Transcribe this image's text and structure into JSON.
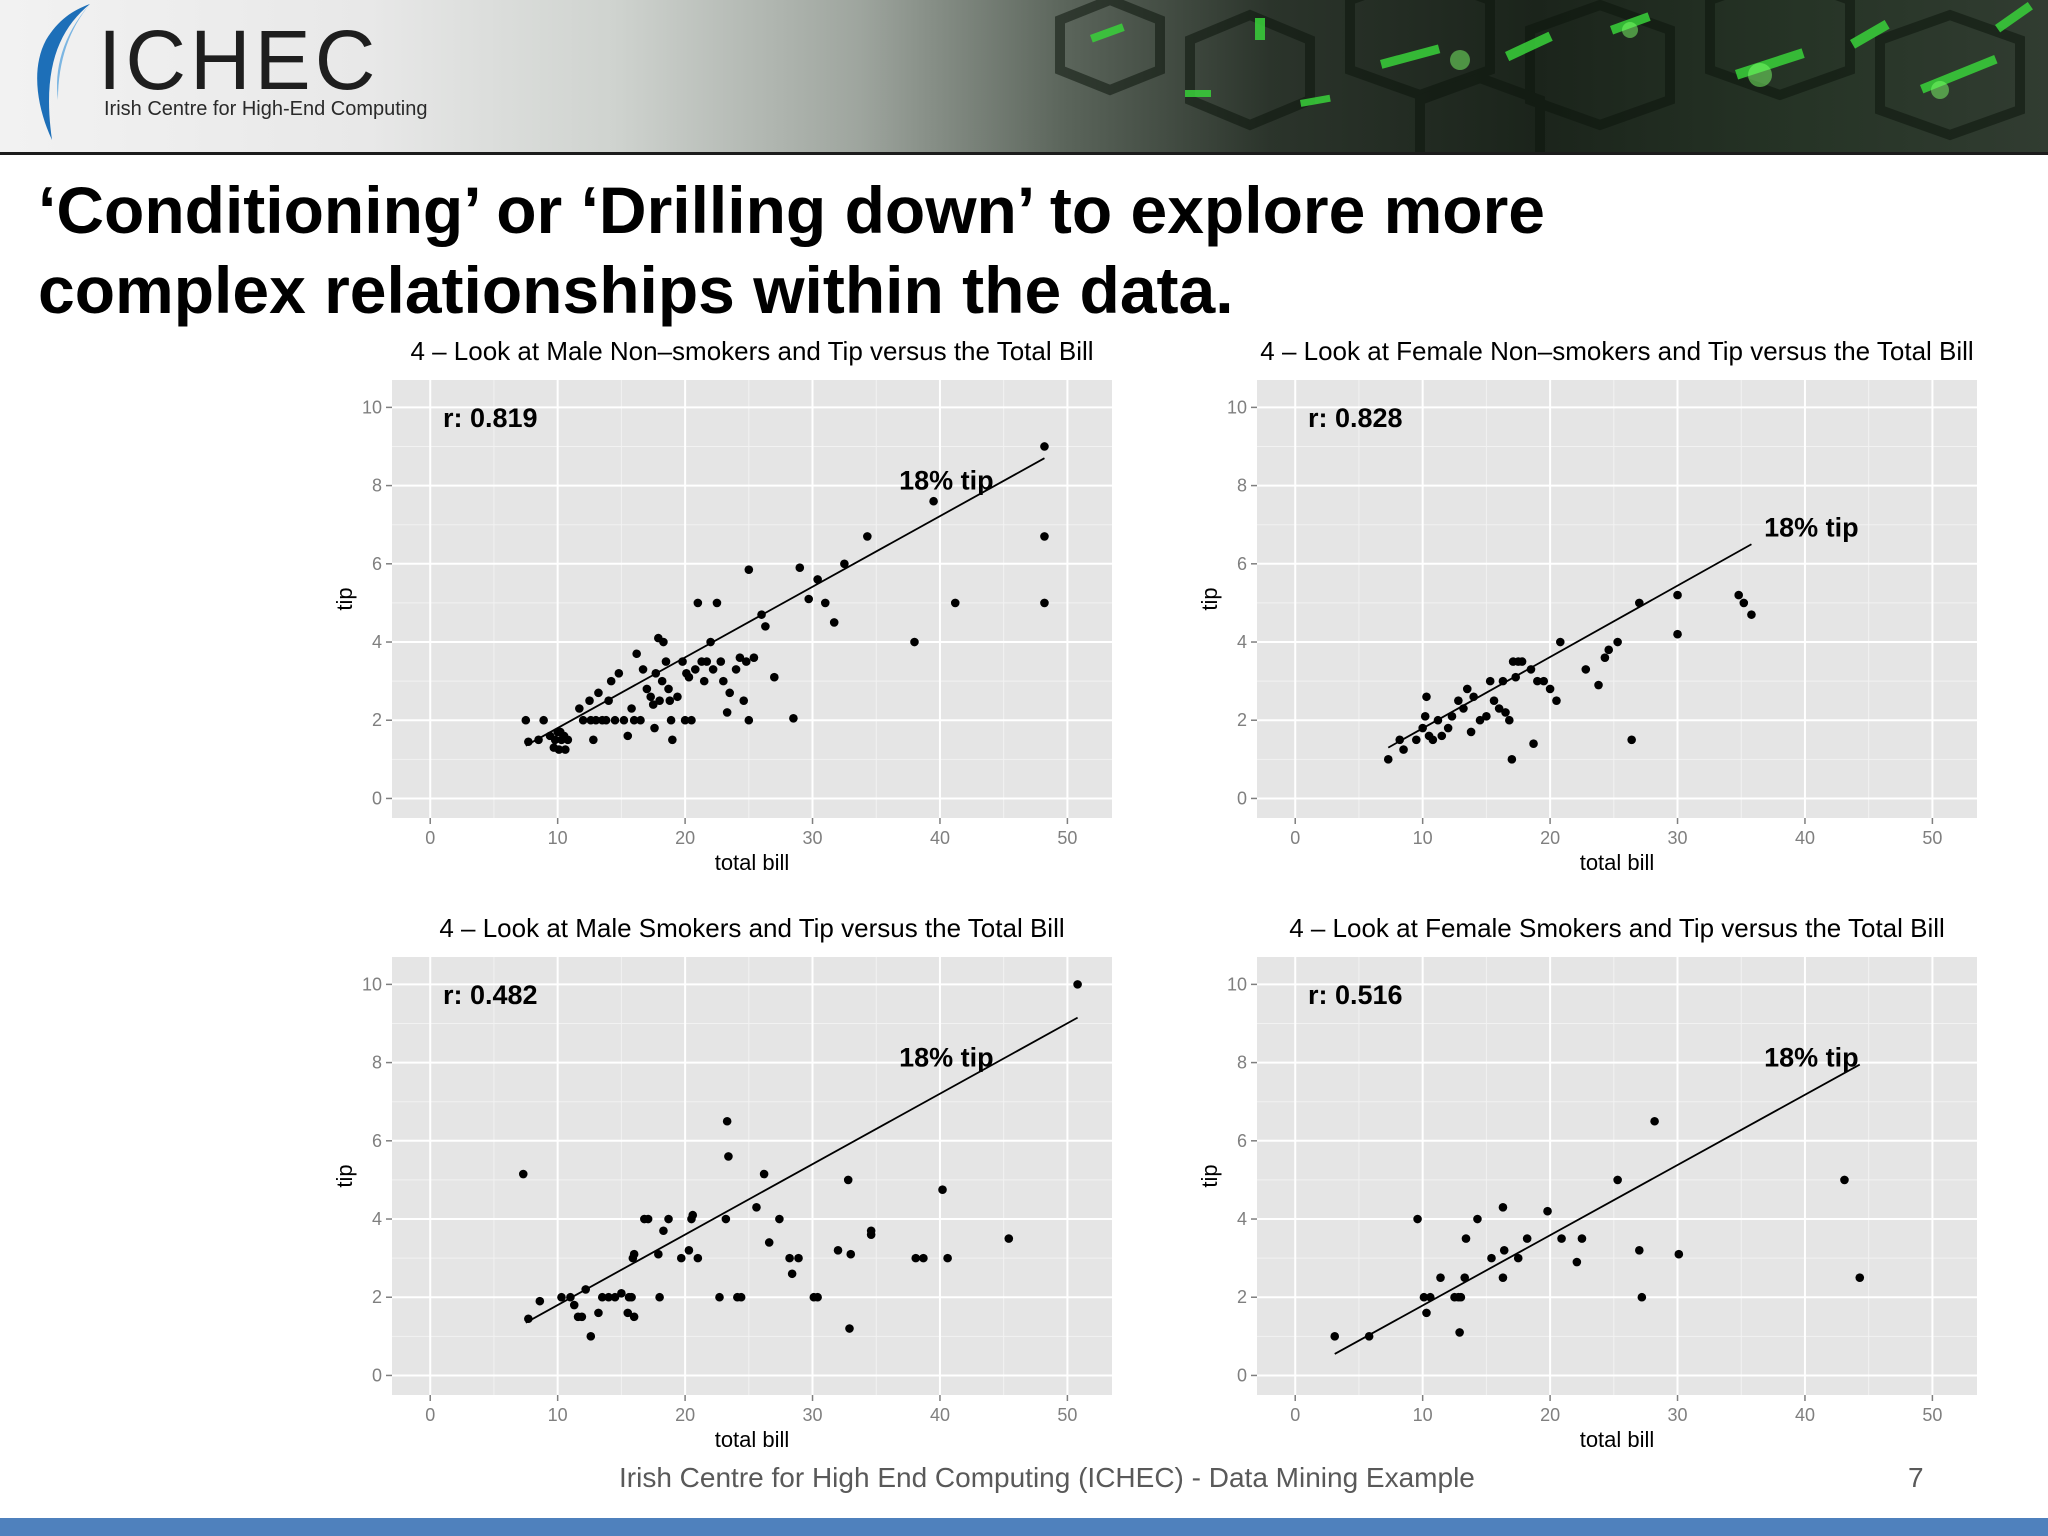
{
  "header": {
    "logo_text": "ICHEC",
    "logo_subtitle": "Irish Centre for High-End Computing"
  },
  "title_line1": "‘Conditioning’ or ‘Drilling down’ to explore more",
  "title_line2": "complex relationships within the data.",
  "footer": {
    "text": "Irish Centre for High End Computing (ICHEC) - Data Mining Example",
    "page_number": "7"
  },
  "colors": {
    "panel_bg": "#e5e5e5",
    "grid": "#ffffff",
    "points": "#000000",
    "accent_bar": "#4f81bd"
  },
  "chart_data": [
    {
      "type": "scatter",
      "title": "4 – Look at Male Non–smokers and Tip versus the Total Bill",
      "xlabel": "total bill",
      "ylabel": "tip",
      "xlim": [
        -3,
        53.5
      ],
      "ylim": [
        -0.5,
        10.7
      ],
      "xticks": [
        0,
        10,
        20,
        30,
        40,
        50
      ],
      "yticks": [
        0,
        2,
        4,
        6,
        8,
        10
      ],
      "grid": true,
      "r_label": "r: 0.819",
      "line_label": "18% tip",
      "line_label_at": [
        40.5,
        7.9
      ],
      "r_label_at": [
        1,
        9.5
      ],
      "line": {
        "x": [
          7.5,
          48.2
        ],
        "y": [
          1.35,
          8.7
        ]
      },
      "points": [
        [
          7.5,
          2
        ],
        [
          7.7,
          1.45
        ],
        [
          8.5,
          1.5
        ],
        [
          8.9,
          2
        ],
        [
          9.4,
          1.6
        ],
        [
          9.7,
          1.3
        ],
        [
          9.8,
          1.5
        ],
        [
          10,
          1.7
        ],
        [
          10.1,
          1.25
        ],
        [
          10.2,
          1.7
        ],
        [
          10.3,
          1.5
        ],
        [
          10.5,
          1.6
        ],
        [
          10.6,
          1.25
        ],
        [
          10.8,
          1.5
        ],
        [
          11.7,
          2.3
        ],
        [
          12,
          2
        ],
        [
          12.5,
          2.5
        ],
        [
          12.6,
          2
        ],
        [
          12.8,
          1.5
        ],
        [
          13,
          2
        ],
        [
          13.2,
          2.7
        ],
        [
          13.5,
          2
        ],
        [
          13.8,
          2
        ],
        [
          14,
          2.5
        ],
        [
          14.2,
          3
        ],
        [
          14.5,
          2
        ],
        [
          14.8,
          3.2
        ],
        [
          15.2,
          2
        ],
        [
          15.5,
          1.6
        ],
        [
          15.8,
          2.3
        ],
        [
          16,
          2
        ],
        [
          16.2,
          3.7
        ],
        [
          16.5,
          2
        ],
        [
          16.7,
          3.3
        ],
        [
          17,
          2.8
        ],
        [
          17.3,
          2.6
        ],
        [
          17.5,
          2.4
        ],
        [
          17.6,
          1.8
        ],
        [
          17.7,
          3.2
        ],
        [
          17.9,
          4.1
        ],
        [
          18,
          2.5
        ],
        [
          18.2,
          3
        ],
        [
          18.3,
          4
        ],
        [
          18.5,
          3.5
        ],
        [
          18.7,
          2.8
        ],
        [
          18.8,
          2.5
        ],
        [
          18.9,
          2
        ],
        [
          19,
          1.5
        ],
        [
          19.4,
          2.6
        ],
        [
          19.8,
          3.5
        ],
        [
          20,
          2
        ],
        [
          20.1,
          3.2
        ],
        [
          20.3,
          3.1
        ],
        [
          20.5,
          2
        ],
        [
          20.8,
          3.3
        ],
        [
          21,
          5
        ],
        [
          21.3,
          3.5
        ],
        [
          21.5,
          3
        ],
        [
          21.7,
          3.5
        ],
        [
          22,
          4
        ],
        [
          22.2,
          3.3
        ],
        [
          22.5,
          5
        ],
        [
          22.8,
          3.5
        ],
        [
          23,
          3
        ],
        [
          23.3,
          2.2
        ],
        [
          23.5,
          2.7
        ],
        [
          24,
          3.3
        ],
        [
          24.3,
          3.6
        ],
        [
          24.6,
          2.5
        ],
        [
          24.8,
          3.5
        ],
        [
          25,
          5.85
        ],
        [
          25,
          2
        ],
        [
          25.4,
          3.6
        ],
        [
          26,
          4.7
        ],
        [
          26.3,
          4.4
        ],
        [
          27,
          3.1
        ],
        [
          28.5,
          2.05
        ],
        [
          29,
          5.9
        ],
        [
          29.7,
          5.1
        ],
        [
          30.4,
          5.6
        ],
        [
          31,
          5
        ],
        [
          31.7,
          4.5
        ],
        [
          32.5,
          6
        ],
        [
          34.3,
          6.7
        ],
        [
          38,
          4
        ],
        [
          39.5,
          7.6
        ],
        [
          41.2,
          5
        ],
        [
          48.2,
          9
        ],
        [
          48.2,
          6.7
        ],
        [
          48.2,
          5
        ]
      ]
    },
    {
      "type": "scatter",
      "title": "4 – Look at Female Non–smokers and Tip versus the Total Bill",
      "xlabel": "total bill",
      "ylabel": "tip",
      "xlim": [
        -3,
        53.5
      ],
      "ylim": [
        -0.5,
        10.7
      ],
      "xticks": [
        0,
        10,
        20,
        30,
        40,
        50
      ],
      "yticks": [
        0,
        2,
        4,
        6,
        8,
        10
      ],
      "grid": true,
      "r_label": "r: 0.828",
      "line_label": "18% tip",
      "line_label_at": [
        40.5,
        6.7
      ],
      "r_label_at": [
        1,
        9.5
      ],
      "line": {
        "x": [
          7.3,
          35.8
        ],
        "y": [
          1.3,
          6.5
        ]
      },
      "points": [
        [
          7.3,
          1
        ],
        [
          8.2,
          1.5
        ],
        [
          8.5,
          1.25
        ],
        [
          9.5,
          1.5
        ],
        [
          10,
          1.8
        ],
        [
          10.2,
          2.1
        ],
        [
          10.3,
          2.6
        ],
        [
          10.5,
          1.6
        ],
        [
          10.8,
          1.5
        ],
        [
          11.2,
          2
        ],
        [
          11.5,
          1.6
        ],
        [
          12,
          1.8
        ],
        [
          12.3,
          2.1
        ],
        [
          12.8,
          2.5
        ],
        [
          13.2,
          2.3
        ],
        [
          13.5,
          2.8
        ],
        [
          13.8,
          1.7
        ],
        [
          14,
          2.6
        ],
        [
          14.5,
          2
        ],
        [
          15,
          2.1
        ],
        [
          15.3,
          3
        ],
        [
          15.6,
          2.5
        ],
        [
          16,
          2.3
        ],
        [
          16.3,
          3
        ],
        [
          16.5,
          2.2
        ],
        [
          16.8,
          2
        ],
        [
          17,
          1
        ],
        [
          17.1,
          3.5
        ],
        [
          17.3,
          3.1
        ],
        [
          17.5,
          3.5
        ],
        [
          17.8,
          3.5
        ],
        [
          18.5,
          3.3
        ],
        [
          18.7,
          1.4
        ],
        [
          19,
          3
        ],
        [
          19.5,
          3
        ],
        [
          20,
          2.8
        ],
        [
          20.5,
          2.5
        ],
        [
          20.8,
          4
        ],
        [
          22.8,
          3.3
        ],
        [
          23.8,
          2.9
        ],
        [
          24.3,
          3.6
        ],
        [
          24.6,
          3.8
        ],
        [
          25.3,
          4
        ],
        [
          26.4,
          1.5
        ],
        [
          27,
          5
        ],
        [
          30,
          5.2
        ],
        [
          30,
          4.2
        ],
        [
          34.8,
          5.2
        ],
        [
          35.2,
          5
        ],
        [
          35.8,
          4.7
        ]
      ]
    },
    {
      "type": "scatter",
      "title": "4 – Look at Male Smokers and Tip versus the Total Bill",
      "xlabel": "total bill",
      "ylabel": "tip",
      "xlim": [
        -3,
        53.5
      ],
      "ylim": [
        -0.5,
        10.7
      ],
      "xticks": [
        0,
        10,
        20,
        30,
        40,
        50
      ],
      "yticks": [
        0,
        2,
        4,
        6,
        8,
        10
      ],
      "grid": true,
      "r_label": "r: 0.482",
      "line_label": "18% tip",
      "line_label_at": [
        40.5,
        7.9
      ],
      "r_label_at": [
        1,
        9.5
      ],
      "line": {
        "x": [
          7.5,
          50.8
        ],
        "y": [
          1.35,
          9.15
        ]
      },
      "points": [
        [
          7.3,
          5.15
        ],
        [
          7.7,
          1.45
        ],
        [
          8.6,
          1.9
        ],
        [
          10.3,
          2
        ],
        [
          11,
          2
        ],
        [
          11.3,
          1.8
        ],
        [
          11.6,
          1.5
        ],
        [
          11.9,
          1.5
        ],
        [
          12.2,
          2.2
        ],
        [
          12.6,
          1
        ],
        [
          13.2,
          1.6
        ],
        [
          13.5,
          2
        ],
        [
          14,
          2
        ],
        [
          14.5,
          2
        ],
        [
          15,
          2.1
        ],
        [
          15.5,
          1.6
        ],
        [
          15.6,
          2
        ],
        [
          15.8,
          2
        ],
        [
          15.9,
          3
        ],
        [
          16,
          1.5
        ],
        [
          16,
          3.1
        ],
        [
          16.8,
          4
        ],
        [
          17.1,
          4
        ],
        [
          17.9,
          3.1
        ],
        [
          18,
          2
        ],
        [
          18.3,
          3.7
        ],
        [
          18.7,
          4
        ],
        [
          19.7,
          3
        ],
        [
          20.3,
          3.2
        ],
        [
          20.5,
          4
        ],
        [
          20.6,
          4.1
        ],
        [
          21,
          3
        ],
        [
          22.7,
          2
        ],
        [
          23.2,
          4
        ],
        [
          23.3,
          6.5
        ],
        [
          23.4,
          5.6
        ],
        [
          24.1,
          2
        ],
        [
          24.4,
          2
        ],
        [
          25.6,
          4.3
        ],
        [
          26.2,
          5.15
        ],
        [
          26.6,
          3.4
        ],
        [
          27.4,
          4
        ],
        [
          28.2,
          3
        ],
        [
          28.4,
          2.6
        ],
        [
          28.9,
          3
        ],
        [
          30.1,
          2
        ],
        [
          30.4,
          2
        ],
        [
          32,
          3.2
        ],
        [
          32.8,
          5
        ],
        [
          33,
          3.1
        ],
        [
          32.9,
          1.2
        ],
        [
          34.6,
          3.6
        ],
        [
          34.6,
          3.7
        ],
        [
          38.1,
          3
        ],
        [
          38.7,
          3
        ],
        [
          40.2,
          4.75
        ],
        [
          40.6,
          3
        ],
        [
          45.4,
          3.5
        ],
        [
          50.8,
          10
        ]
      ]
    },
    {
      "type": "scatter",
      "title": "4 – Look at Female Smokers and Tip versus the Total Bill",
      "xlabel": "total bill",
      "ylabel": "tip",
      "xlim": [
        -3,
        53.5
      ],
      "ylim": [
        -0.5,
        10.7
      ],
      "xticks": [
        0,
        10,
        20,
        30,
        40,
        50
      ],
      "yticks": [
        0,
        2,
        4,
        6,
        8,
        10
      ],
      "grid": true,
      "r_label": "r: 0.516",
      "line_label": "18% tip",
      "line_label_at": [
        40.5,
        7.9
      ],
      "r_label_at": [
        1,
        9.5
      ],
      "line": {
        "x": [
          3.1,
          44.3
        ],
        "y": [
          0.55,
          7.95
        ]
      },
      "points": [
        [
          3.1,
          1
        ],
        [
          5.8,
          1
        ],
        [
          9.6,
          4
        ],
        [
          10.1,
          2
        ],
        [
          10.6,
          2
        ],
        [
          10.3,
          1.6
        ],
        [
          11.4,
          2.5
        ],
        [
          12.5,
          2
        ],
        [
          12.8,
          2
        ],
        [
          12.9,
          1.1
        ],
        [
          13,
          2
        ],
        [
          13.3,
          2.5
        ],
        [
          13.4,
          3.5
        ],
        [
          14.3,
          4
        ],
        [
          15.4,
          3
        ],
        [
          16.3,
          4.3
        ],
        [
          16.4,
          3.2
        ],
        [
          16.3,
          2.5
        ],
        [
          17.5,
          3
        ],
        [
          18.2,
          3.5
        ],
        [
          19.8,
          4.2
        ],
        [
          20.9,
          3.5
        ],
        [
          22.1,
          2.9
        ],
        [
          22.5,
          3.5
        ],
        [
          25.3,
          5
        ],
        [
          27,
          3.2
        ],
        [
          27.2,
          2
        ],
        [
          28.2,
          6.5
        ],
        [
          30.1,
          3.1
        ],
        [
          43.1,
          5
        ],
        [
          44.3,
          2.5
        ]
      ]
    }
  ]
}
